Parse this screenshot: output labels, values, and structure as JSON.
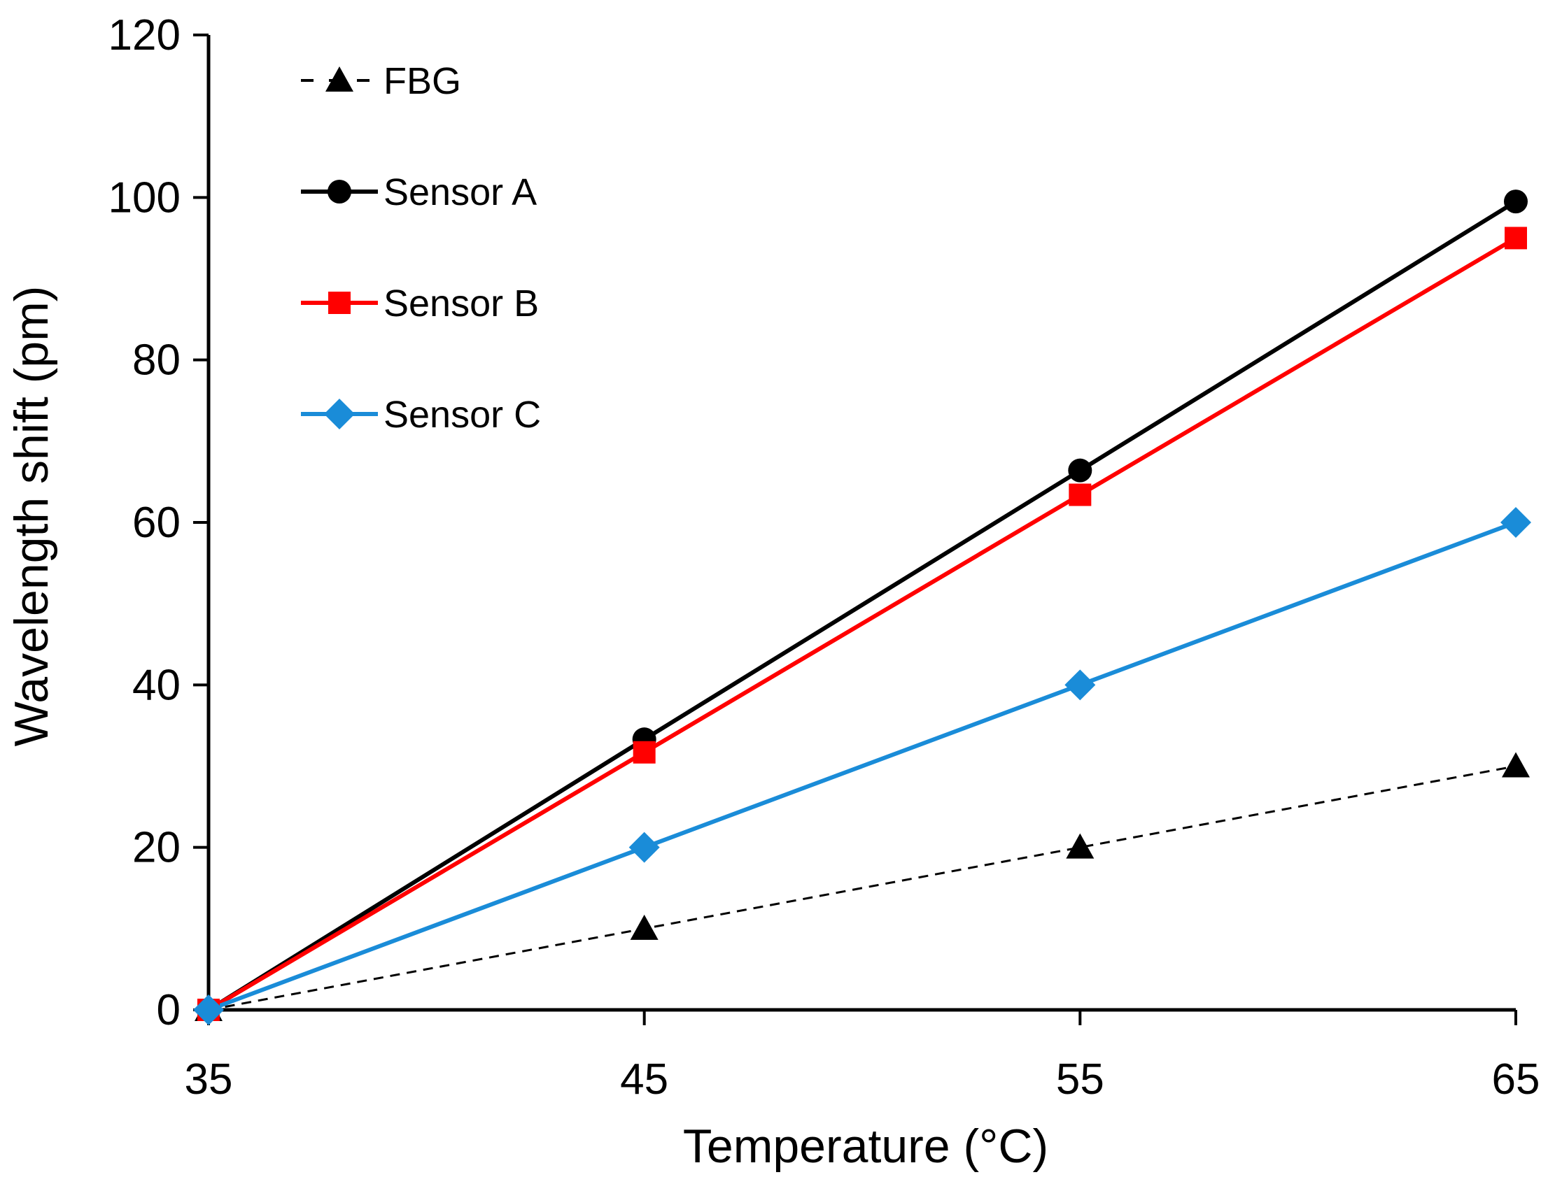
{
  "chart_data": {
    "type": "line",
    "title": "",
    "xlabel": "Temperature (°C)",
    "ylabel": "Wavelength shift (pm)",
    "x": [
      35,
      45,
      55,
      65
    ],
    "x_tick_labels": [
      "35",
      "45",
      "55",
      "65"
    ],
    "xlim": [
      35,
      65
    ],
    "ylim": [
      0,
      120
    ],
    "y_ticks": [
      0,
      20,
      40,
      60,
      80,
      100,
      120
    ],
    "y_tick_labels": [
      "0",
      "20",
      "40",
      "60",
      "80",
      "100",
      "120"
    ],
    "grid": false,
    "legend_position": "top-left",
    "series": [
      {
        "name": "FBG",
        "values": [
          0,
          10,
          20,
          30
        ],
        "color": "#000000",
        "marker": "triangle",
        "line_style": "dashed"
      },
      {
        "name": "Sensor A",
        "values": [
          0,
          33.3,
          66.4,
          99.5
        ],
        "color": "#000000",
        "marker": "circle",
        "line_style": "solid"
      },
      {
        "name": "Sensor B",
        "values": [
          0,
          31.7,
          63.4,
          95
        ],
        "color": "#ff0000",
        "marker": "square",
        "line_style": "solid"
      },
      {
        "name": "Sensor C",
        "values": [
          0,
          20,
          40,
          60
        ],
        "color": "#1a8cd8",
        "marker": "diamond",
        "line_style": "solid"
      }
    ]
  }
}
